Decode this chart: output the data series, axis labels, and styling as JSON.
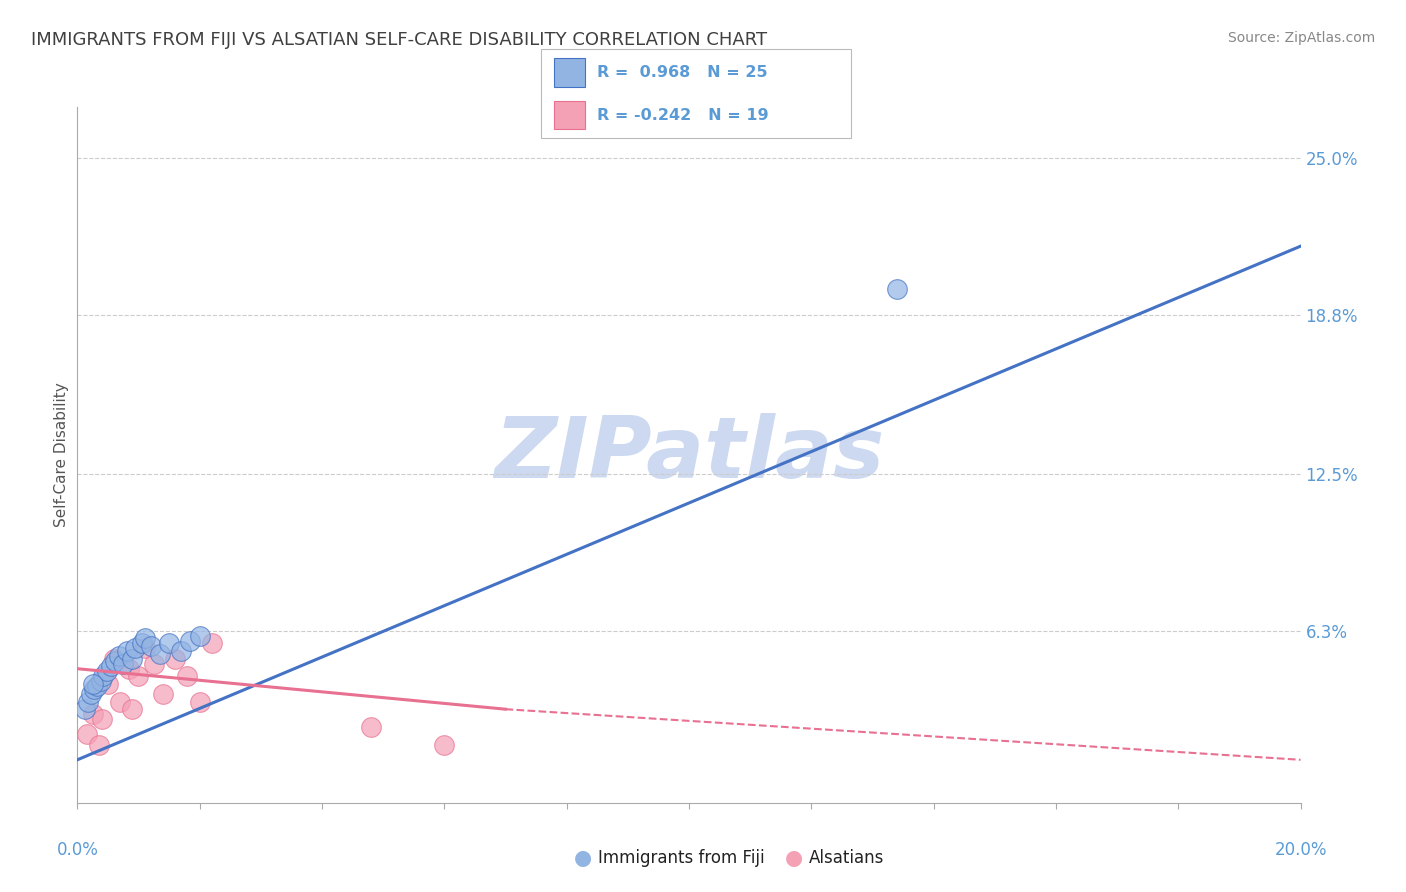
{
  "title": "IMMIGRANTS FROM FIJI VS ALSATIAN SELF-CARE DISABILITY CORRELATION CHART",
  "source": "Source: ZipAtlas.com",
  "ylabel": "Self-Care Disability",
  "ytick_labels": [
    "6.3%",
    "12.5%",
    "18.8%",
    "25.0%"
  ],
  "ytick_values": [
    6.3,
    12.5,
    18.8,
    25.0
  ],
  "grid_lines": [
    6.3,
    12.5,
    18.8,
    25.0
  ],
  "xlim": [
    0.0,
    20.0
  ],
  "ylim": [
    -0.5,
    27.0
  ],
  "r_blue": "0.968",
  "n_blue": "25",
  "r_pink": "-0.242",
  "n_pink": "19",
  "blue_color": "#92b4e3",
  "pink_color": "#f4a0b5",
  "blue_line_color": "#4472c4",
  "pink_line_color": "#e87090",
  "title_color": "#404040",
  "axis_label_color": "#5b9bd5",
  "watermark_color": "#ccd9f0",
  "blue_scatter_x": [
    0.12,
    0.18,
    0.22,
    0.28,
    0.32,
    0.38,
    0.42,
    0.48,
    0.55,
    0.62,
    0.68,
    0.75,
    0.82,
    0.9,
    0.95,
    1.05,
    1.1,
    1.2,
    1.35,
    1.5,
    1.7,
    1.85,
    2.0,
    13.4,
    0.25
  ],
  "blue_scatter_y": [
    3.2,
    3.5,
    3.8,
    4.0,
    4.1,
    4.3,
    4.5,
    4.7,
    4.9,
    5.1,
    5.3,
    5.0,
    5.5,
    5.2,
    5.6,
    5.8,
    6.0,
    5.7,
    5.4,
    5.8,
    5.5,
    5.9,
    6.1,
    19.8,
    4.2
  ],
  "pink_scatter_x": [
    0.15,
    0.25,
    0.35,
    0.5,
    0.6,
    0.7,
    0.85,
    0.9,
    1.0,
    1.1,
    1.25,
    1.4,
    1.6,
    1.8,
    2.0,
    2.2,
    4.8,
    6.0,
    0.4
  ],
  "pink_scatter_y": [
    2.2,
    3.0,
    1.8,
    4.2,
    5.2,
    3.5,
    4.8,
    3.2,
    4.5,
    5.6,
    5.0,
    3.8,
    5.2,
    4.5,
    3.5,
    5.8,
    2.5,
    1.8,
    2.8
  ],
  "blue_line_x0": 0.0,
  "blue_line_y0": 1.2,
  "blue_line_x1": 20.0,
  "blue_line_y1": 21.5,
  "pink_solid_x0": 0.0,
  "pink_solid_y0": 4.8,
  "pink_solid_x1": 7.0,
  "pink_solid_y1": 3.2,
  "pink_dash_x0": 7.0,
  "pink_dash_y0": 3.2,
  "pink_dash_x1": 20.0,
  "pink_dash_y1": 1.2,
  "legend_blue_label": "Immigrants from Fiji",
  "legend_pink_label": "Alsatians"
}
